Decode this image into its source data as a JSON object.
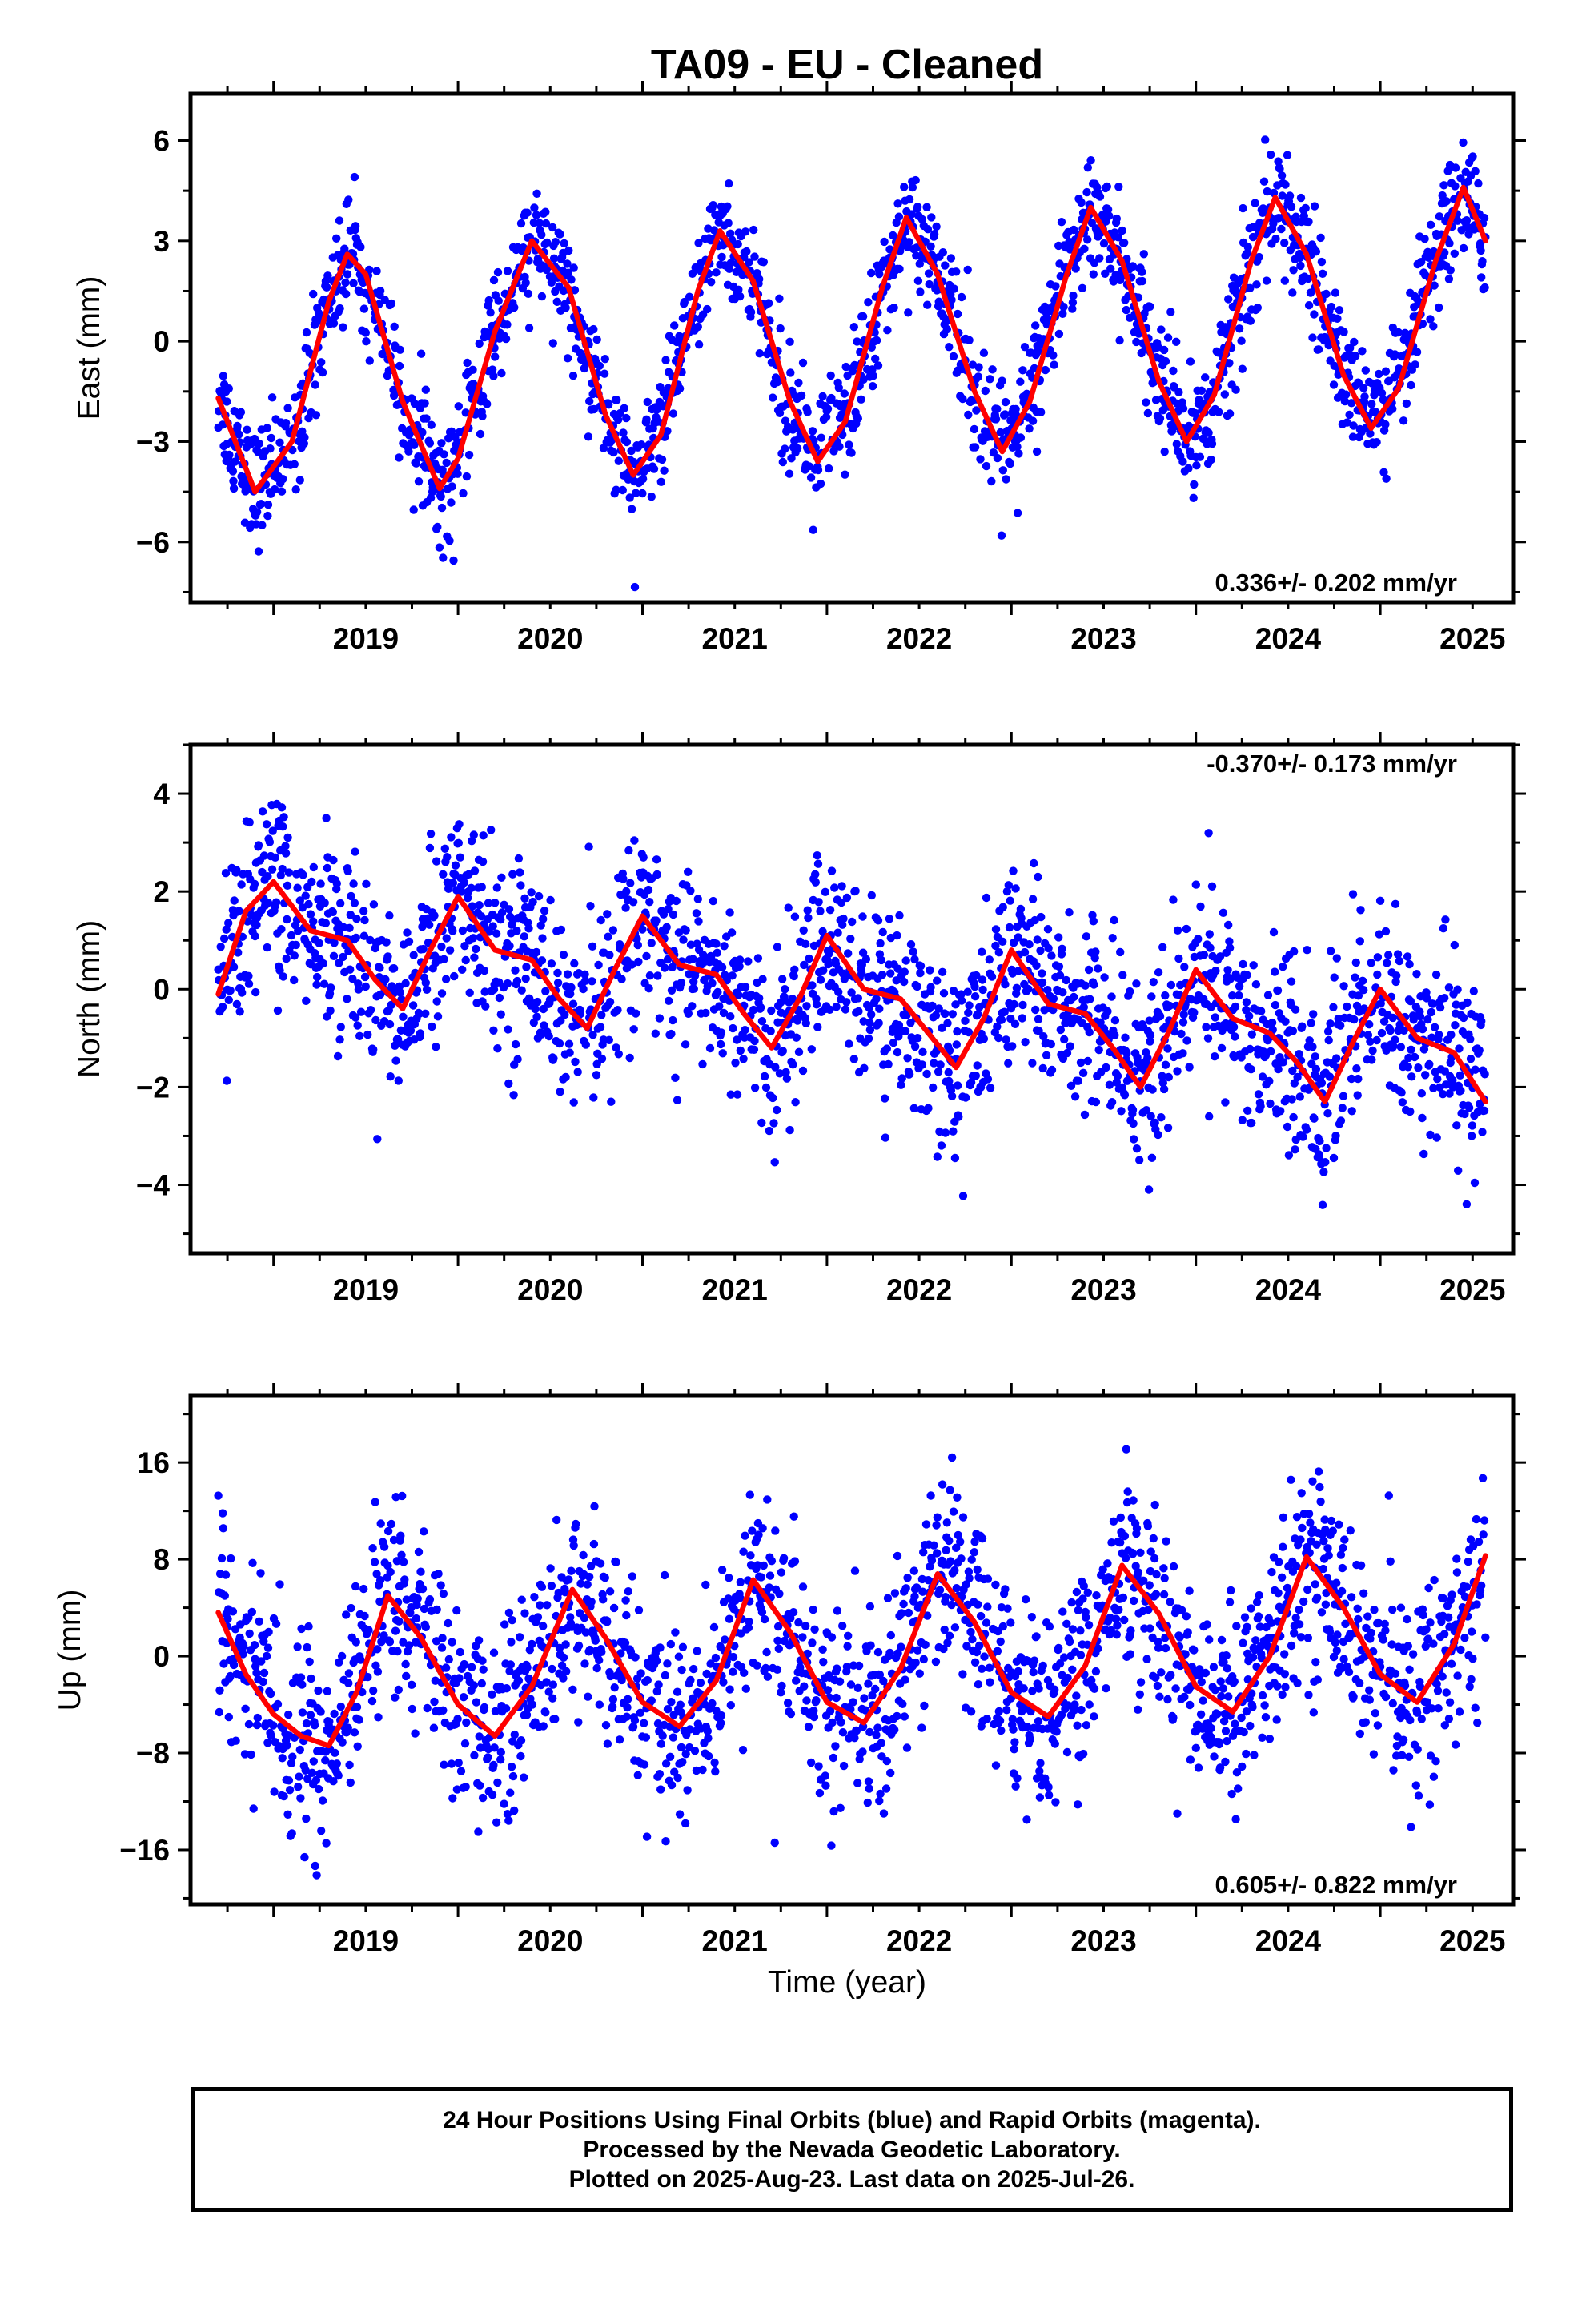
{
  "title": "TA09  - EU - Cleaned",
  "colors": {
    "points": "#0000ff",
    "fit": "#ff0000",
    "frame": "#000000"
  },
  "footer": {
    "line1": "24 Hour Positions Using Final Orbits (blue) and Rapid Orbits (magenta).",
    "line2": "Processed by the Nevada Geodetic Laboratory.",
    "line3": "Plotted on 2025-Aug-23. Last data on 2025-Jul-26."
  },
  "chart_data": [
    {
      "type": "scatter",
      "ylabel": "East (mm)",
      "xlabel": "",
      "x_ticks": [
        2019,
        2020,
        2021,
        2022,
        2023,
        2024,
        2025
      ],
      "xlim": [
        2018.55,
        2025.72
      ],
      "y_ticks": [
        -6,
        -3,
        0,
        3,
        6
      ],
      "ylim": [
        -7.8,
        7.4
      ],
      "grid": false,
      "rate_label": "0.336+/- 0.202 mm/yr",
      "rate_position": "bottom-right",
      "data_start": 2018.7,
      "data_end": 2025.57,
      "scatter_std": 0.85,
      "fit_curve": {
        "x": [
          2018.7,
          2018.9,
          2019.1,
          2019.3,
          2019.4,
          2019.5,
          2019.7,
          2019.9,
          2020.0,
          2020.2,
          2020.4,
          2020.6,
          2020.8,
          2020.95,
          2021.1,
          2021.3,
          2021.42,
          2021.6,
          2021.8,
          2021.95,
          2022.1,
          2022.3,
          2022.43,
          2022.6,
          2022.8,
          2022.95,
          2023.1,
          2023.3,
          2023.43,
          2023.6,
          2023.8,
          2023.95,
          2024.1,
          2024.3,
          2024.43,
          2024.6,
          2024.8,
          2024.95,
          2025.1,
          2025.3,
          2025.45,
          2025.57
        ],
        "y": [
          -1.7,
          -4.5,
          -3.0,
          1.2,
          2.6,
          2.0,
          -1.8,
          -4.4,
          -3.5,
          0.3,
          3.0,
          1.6,
          -2.2,
          -4.0,
          -2.8,
          1.5,
          3.3,
          1.8,
          -1.8,
          -3.6,
          -2.4,
          1.6,
          3.7,
          2.0,
          -1.5,
          -3.3,
          -1.8,
          2.0,
          4.0,
          2.4,
          -1.2,
          -3.0,
          -1.6,
          2.4,
          4.3,
          2.6,
          -1.0,
          -2.6,
          -1.4,
          2.4,
          4.6,
          3.0
        ]
      }
    },
    {
      "type": "scatter",
      "ylabel": "North (mm)",
      "xlabel": "",
      "x_ticks": [
        2019,
        2020,
        2021,
        2022,
        2023,
        2024,
        2025
      ],
      "xlim": [
        2018.55,
        2025.72
      ],
      "y_ticks": [
        -4,
        -2,
        0,
        2,
        4
      ],
      "ylim": [
        -5.4,
        5.0
      ],
      "grid": false,
      "rate_label": "-0.370+/- 0.173 mm/yr",
      "rate_position": "top-right",
      "data_start": 2018.7,
      "data_end": 2025.57,
      "scatter_std": 0.95,
      "fit_curve": {
        "x": [
          2018.7,
          2018.85,
          2019.0,
          2019.2,
          2019.4,
          2019.55,
          2019.7,
          2019.85,
          2020.0,
          2020.2,
          2020.4,
          2020.55,
          2020.7,
          2020.85,
          2021.0,
          2021.2,
          2021.4,
          2021.55,
          2021.7,
          2021.85,
          2022.0,
          2022.2,
          2022.4,
          2022.55,
          2022.7,
          2022.85,
          2023.0,
          2023.2,
          2023.4,
          2023.55,
          2023.7,
          2023.85,
          2024.0,
          2024.2,
          2024.4,
          2024.55,
          2024.7,
          2024.85,
          2025.0,
          2025.2,
          2025.4,
          2025.57
        ],
        "y": [
          -0.1,
          1.6,
          2.2,
          1.2,
          1.0,
          0.2,
          -0.4,
          0.8,
          1.9,
          0.8,
          0.6,
          -0.2,
          -0.8,
          0.4,
          1.5,
          0.5,
          0.3,
          -0.5,
          -1.2,
          -0.2,
          1.1,
          0.0,
          -0.2,
          -0.9,
          -1.6,
          -0.6,
          0.8,
          -0.3,
          -0.5,
          -1.2,
          -2.0,
          -0.9,
          0.4,
          -0.6,
          -0.9,
          -1.5,
          -2.3,
          -1.1,
          0.0,
          -1.0,
          -1.3,
          -2.3
        ]
      }
    },
    {
      "type": "scatter",
      "ylabel": "Up (mm)",
      "xlabel": "Time (year)",
      "x_ticks": [
        2019,
        2020,
        2021,
        2022,
        2023,
        2024,
        2025
      ],
      "xlim": [
        2018.55,
        2025.72
      ],
      "y_ticks": [
        -16,
        -8,
        0,
        8,
        16
      ],
      "ylim": [
        -20.5,
        21.5
      ],
      "grid": false,
      "rate_label": "0.605+/- 0.822 mm/yr",
      "rate_position": "bottom-right",
      "data_start": 2018.7,
      "data_end": 2025.57,
      "scatter_std": 4.0,
      "fit_curve": {
        "x": [
          2018.7,
          2018.85,
          2019.0,
          2019.15,
          2019.3,
          2019.45,
          2019.62,
          2019.8,
          2020.0,
          2020.2,
          2020.4,
          2020.62,
          2020.8,
          2021.0,
          2021.2,
          2021.4,
          2021.6,
          2021.8,
          2022.0,
          2022.2,
          2022.4,
          2022.6,
          2022.8,
          2023.0,
          2023.2,
          2023.4,
          2023.6,
          2023.8,
          2024.0,
          2024.2,
          2024.4,
          2024.6,
          2024.8,
          2025.0,
          2025.2,
          2025.4,
          2025.57
        ],
        "y": [
          3.6,
          -1.5,
          -4.8,
          -6.6,
          -7.4,
          -3.0,
          5.0,
          1.5,
          -4.0,
          -6.6,
          -2.5,
          5.5,
          1.5,
          -3.8,
          -5.8,
          -2.0,
          6.3,
          2.0,
          -3.8,
          -5.5,
          -1.0,
          6.8,
          2.8,
          -3.0,
          -5.0,
          -0.8,
          7.5,
          3.5,
          -2.5,
          -4.6,
          0.0,
          8.2,
          4.0,
          -1.5,
          -3.8,
          1.0,
          8.3
        ]
      }
    }
  ]
}
